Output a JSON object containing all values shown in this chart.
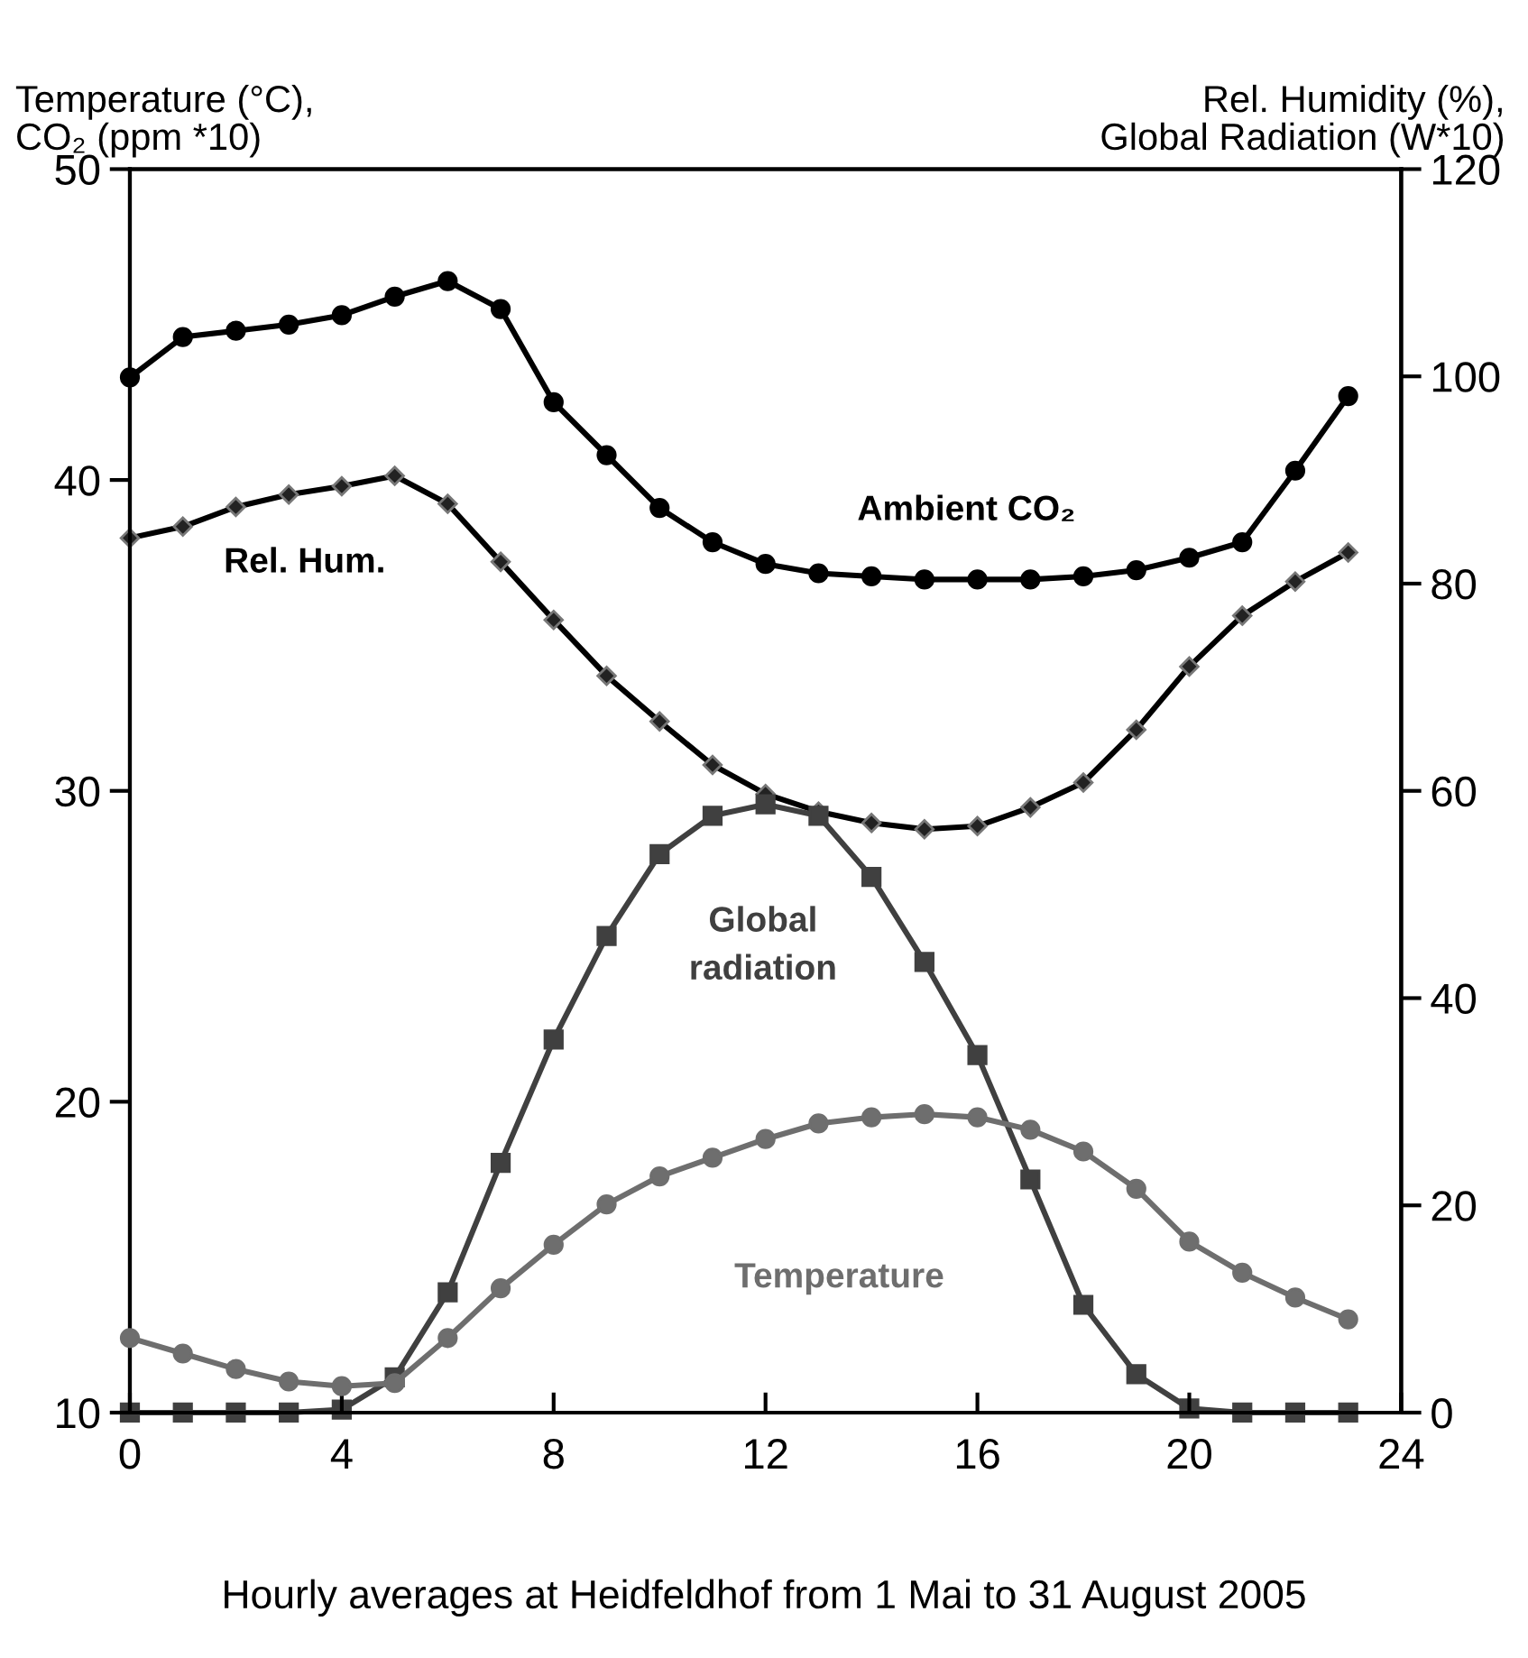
{
  "chart_data": {
    "type": "line",
    "ylabel": "Temperature (°C),\nCO₂ (ppm *10)",
    "y2label": "Rel. Humidity (%),\nGlobal Radiation (W*10)",
    "x": [
      0,
      1,
      2,
      3,
      4,
      5,
      6,
      7,
      8,
      9,
      10,
      11,
      12,
      13,
      14,
      15,
      16,
      17,
      18,
      19,
      20,
      21,
      22,
      23
    ],
    "series": [
      {
        "name": "Ambient CO₂",
        "color": "#000000",
        "marker": "circle",
        "values": [
          43.3,
          44.6,
          44.8,
          45.0,
          45.3,
          45.9,
          46.4,
          45.5,
          42.5,
          40.8,
          39.1,
          38.0,
          37.3,
          37.0,
          36.9,
          36.8,
          36.8,
          36.8,
          36.9,
          37.1,
          37.5,
          38.0,
          40.3,
          42.7
        ]
      },
      {
        "name": "Rel. Hum.",
        "color": "#000000",
        "marker": "diamond",
        "axis": "y2",
        "values": [
          84.4,
          85.5,
          87.4,
          88.6,
          89.4,
          90.4,
          87.7,
          82.1,
          76.5,
          71.1,
          66.7,
          62.5,
          59.7,
          58.0,
          56.9,
          56.3,
          56.6,
          58.4,
          60.8,
          65.9,
          72.0,
          76.9,
          80.2,
          83.0
        ]
      },
      {
        "name": "Global\nradiation",
        "color": "#404040",
        "marker": "square",
        "axis": "y2",
        "values": [
          0,
          0,
          0,
          0,
          0.3,
          3.4,
          11.6,
          24.1,
          36.0,
          46.0,
          53.9,
          57.6,
          58.7,
          57.6,
          51.7,
          43.5,
          34.5,
          22.5,
          10.4,
          3.7,
          0.4,
          0,
          0,
          0
        ]
      },
      {
        "name": "Temperature",
        "color": "#6e6e6e",
        "marker": "circle",
        "values": [
          12.4,
          11.9,
          11.4,
          11.0,
          10.85,
          10.95,
          12.4,
          14.0,
          15.4,
          16.7,
          17.6,
          18.2,
          18.8,
          19.3,
          19.5,
          19.6,
          19.5,
          19.1,
          18.4,
          17.2,
          15.5,
          14.5,
          13.7,
          13.0
        ]
      }
    ],
    "annotations": [
      "Hourly averages at Heidfeldhof from 1 Mai to 31 August 2005"
    ],
    "xlim": [
      0,
      24
    ],
    "xticks": [
      0,
      4,
      8,
      12,
      16,
      20,
      24
    ],
    "ylim": [
      10,
      50
    ],
    "yticks": [
      10,
      20,
      30,
      40,
      50
    ],
    "y2lim": [
      0,
      120
    ],
    "y2ticks": [
      0,
      20,
      40,
      60,
      80,
      100,
      120
    ],
    "grid": false,
    "legend": false
  }
}
